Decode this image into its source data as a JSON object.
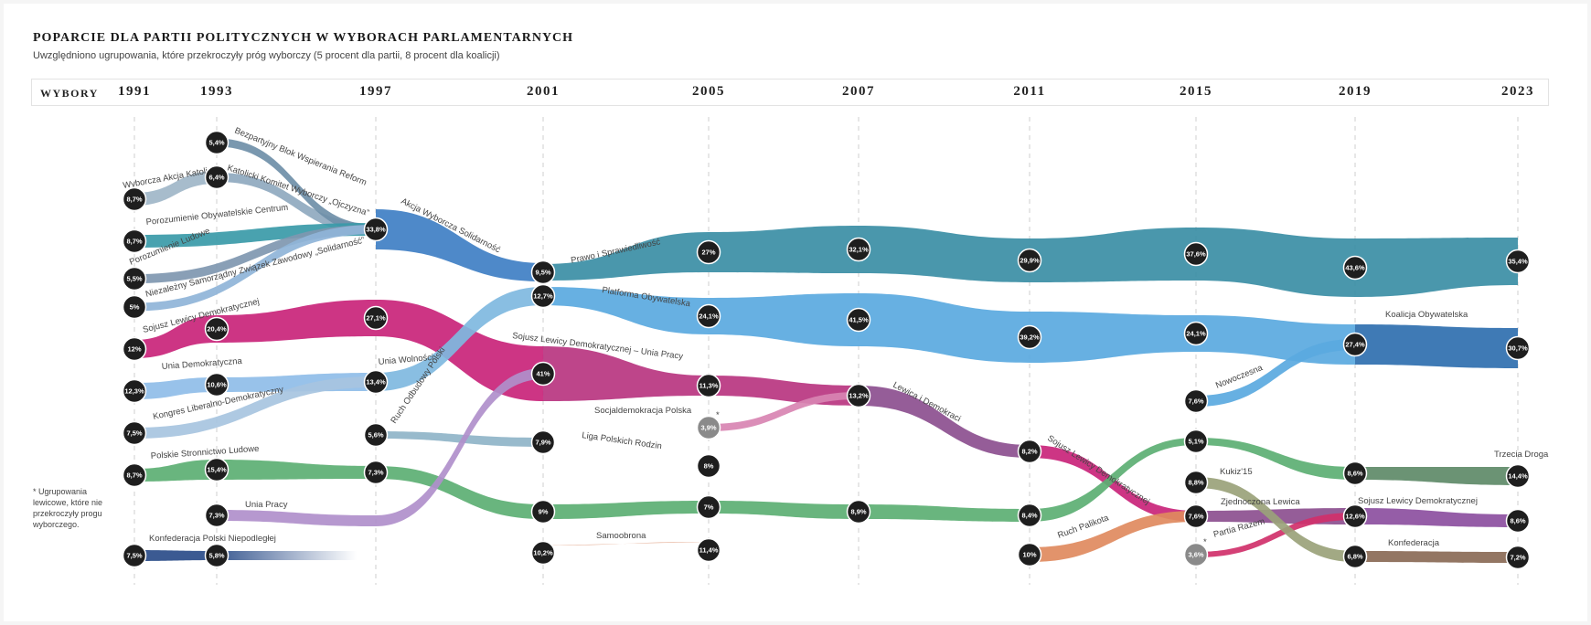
{
  "title": "POPARCIE DLA PARTII POLITYCZNYCH W WYBORACH PARLAMENTARNYCH",
  "subtitle": "Uwzględniono ugrupowania, które przekroczyły próg wyborczy (5 procent dla partii, 8 procent dla koalicji)",
  "header_label": "WYBORY",
  "footnote": "* Ugrupowania lewicowe, które nie przekroczyły progu wyborczego.",
  "colors": {
    "pis": "#3b8ea5",
    "po": "#5aa9e0",
    "ko": "#2f6faf",
    "sld": "#c9247a",
    "psl": "#5caf73",
    "lewica": "#8c4f8f",
    "up": "#b08fcb",
    "awsLight": "#3f7fc4",
    "samoobrona": "#e0a082",
    "lpr": "#3a78c0",
    "kpn": "#2a4c88",
    "konf": "#8a6a56",
    "kukiz": "#9aa27a",
    "td": "#5e8a68",
    "node": "#1e1e1e",
    "nodeGray": "#8a8a8a"
  },
  "chart_data": {
    "type": "alluvial",
    "title": "POPARCIE DLA PARTII POLITYCZNYCH W WYBORACH PARLAMENTARNYCH",
    "years": [
      "1991",
      "1993",
      "1997",
      "2001",
      "2005",
      "2007",
      "2011",
      "2015",
      "2019",
      "2023"
    ],
    "flows": [
      {
        "name": "Wyborcza Akcja Katolicka",
        "color": "#9fb6c8",
        "points": [
          [
            "1991",
            8.7
          ],
          [
            "1993",
            6.4
          ]
        ]
      },
      {
        "name": "Katolicki Komitet Wyborczy „Ojczyzna”",
        "color": "#8fa9bf",
        "points": [
          [
            "1993",
            6.4
          ],
          [
            "1997",
            33.8
          ]
        ]
      },
      {
        "name": "Bezpartyjny Blok Wspierania Reform",
        "color": "#6f8fa8",
        "points": [
          [
            "1993",
            5.4
          ],
          [
            "1997",
            33.8
          ]
        ]
      },
      {
        "name": "Porozumienie Obywatelskie Centrum",
        "color": "#3a9aa8",
        "points": [
          [
            "1991",
            8.7
          ],
          [
            "1997",
            33.8
          ]
        ]
      },
      {
        "name": "Porozumienie Ludowe",
        "color": "#7f97b0",
        "points": [
          [
            "1991",
            5.5
          ],
          [
            "1997",
            33.8
          ]
        ]
      },
      {
        "name": "Niezależny Samorządny Związek Zawodowy „Solidarność”",
        "color": "#8fb4d8",
        "points": [
          [
            "1991",
            5
          ],
          [
            "1997",
            33.8
          ]
        ]
      },
      {
        "name": "Akcja Wyborcza Solidarność",
        "color": "#3f7fc4",
        "points": [
          [
            "1997",
            33.8
          ],
          [
            "2001",
            9.5
          ]
        ]
      },
      {
        "name": "Prawo i Sprawiedliwość",
        "color": "#3b8ea5",
        "points": [
          [
            "2001",
            9.5
          ],
          [
            "2005",
            27
          ],
          [
            "2007",
            32.1
          ],
          [
            "2011",
            29.9
          ],
          [
            "2015",
            37.6
          ],
          [
            "2019",
            43.6
          ],
          [
            "2023",
            35.4
          ]
        ]
      },
      {
        "name": "Platforma Obywatelska",
        "color": "#5aa9e0",
        "points": [
          [
            "2001",
            12.7
          ],
          [
            "2005",
            24.1
          ],
          [
            "2007",
            41.5
          ],
          [
            "2011",
            39.2
          ],
          [
            "2015",
            24.1
          ],
          [
            "2019",
            27.4
          ]
        ]
      },
      {
        "name": "Nowoczesna",
        "color": "#5aa9e0",
        "points": [
          [
            "2015",
            7.6
          ],
          [
            "2019",
            27.4
          ]
        ]
      },
      {
        "name": "Koalicja Obywatelska",
        "color": "#2f6faf",
        "points": [
          [
            "2019",
            27.4
          ],
          [
            "2023",
            30.7
          ]
        ]
      },
      {
        "name": "Sojusz Lewicy Demokratycznej",
        "color": "#c9247a",
        "points": [
          [
            "1991",
            12
          ],
          [
            "1993",
            20.4
          ],
          [
            "1997",
            27.1
          ],
          [
            "2001",
            41
          ]
        ]
      },
      {
        "name": "Sojusz Lewicy Demokratycznej – Unia Pracy",
        "color": "#b83580",
        "points": [
          [
            "2001",
            41
          ],
          [
            "2005",
            11.3
          ],
          [
            "2007",
            13.2
          ]
        ]
      },
      {
        "name": "Socjaldemokracja Polska",
        "color": "#d884b2",
        "points": [
          [
            "2005",
            3.9
          ],
          [
            "2007",
            13.2
          ]
        ]
      },
      {
        "name": "Lewica i Demokraci",
        "color": "#8c4f8f",
        "points": [
          [
            "2007",
            13.2
          ],
          [
            "2011",
            8.2
          ]
        ]
      },
      {
        "name": "Sojusz Lewicy Demokratycznej",
        "color": "#c9247a",
        "points": [
          [
            "2011",
            8.2
          ],
          [
            "2015",
            7.6
          ]
        ]
      },
      {
        "name": "Zjednoczona Lewica",
        "color": "#8c4f8f",
        "points": [
          [
            "2015",
            7.6
          ],
          [
            "2019",
            12.6
          ]
        ]
      },
      {
        "name": "Sojusz Lewicy Demokratycznej",
        "color": "#8c4fa0",
        "points": [
          [
            "2019",
            12.6
          ],
          [
            "2023",
            8.6
          ]
        ]
      },
      {
        "name": "Ruch Palikota",
        "color": "#e08a5e",
        "points": [
          [
            "2011",
            10
          ],
          [
            "2015",
            7.6
          ]
        ]
      },
      {
        "name": "Partia Razem",
        "color": "#d0306a",
        "points": [
          [
            "2015",
            3.6
          ],
          [
            "2019",
            12.6
          ]
        ]
      },
      {
        "name": "Unia Demokratyczna",
        "color": "#8fbde8",
        "points": [
          [
            "1991",
            12.3
          ],
          [
            "1993",
            10.6
          ],
          [
            "1997",
            13.4
          ]
        ]
      },
      {
        "name": "Kongres Liberalno-Demokratyczny",
        "color": "#a7c4e0",
        "points": [
          [
            "1991",
            7.5
          ],
          [
            "1997",
            13.4
          ]
        ]
      },
      {
        "name": "Unia Wolności",
        "color": "#7fb8e0",
        "points": [
          [
            "1997",
            13.4
          ],
          [
            "2001",
            12.7
          ]
        ]
      },
      {
        "name": "Ruch Odbudowy Polski",
        "color": "#8fb4c8",
        "points": [
          [
            "1997",
            5.6
          ],
          [
            "2001",
            7.9
          ]
        ]
      },
      {
        "name": "Liga Polskich Rodzin",
        "color": "#3a78c0",
        "points": [
          [
            "2001",
            7.9
          ],
          [
            "2005",
            8
          ]
        ]
      },
      {
        "name": "Polskie Stronnictwo Ludowe",
        "color": "#5caf73",
        "points": [
          [
            "1991",
            8.7
          ],
          [
            "1993",
            15.4
          ],
          [
            "1997",
            7.3
          ],
          [
            "2001",
            9
          ],
          [
            "2005",
            7
          ],
          [
            "2007",
            8.9
          ],
          [
            "2011",
            8.4
          ],
          [
            "2015",
            5.1
          ],
          [
            "2019",
            8.6
          ]
        ]
      },
      {
        "name": "Trzecia Droga",
        "color": "#5e8a68",
        "points": [
          [
            "2019",
            8.6
          ],
          [
            "2023",
            14.4
          ]
        ]
      },
      {
        "name": "Unia Pracy",
        "color": "#b08fcb",
        "points": [
          [
            "1993",
            7.3
          ],
          [
            "1997",
            7.3
          ],
          [
            "2001",
            41
          ]
        ]
      },
      {
        "name": "Konfederacja Polski Niepodległej",
        "color": "#2a4c88",
        "points": [
          [
            "1991",
            7.5
          ],
          [
            "1993",
            5.8
          ]
        ]
      },
      {
        "name": "Samoobrona",
        "color": "#e0a082",
        "points": [
          [
            "2001",
            10.2
          ],
          [
            "2005",
            11.4
          ]
        ]
      },
      {
        "name": "Kukiz'15",
        "color": "#9aa27a",
        "points": [
          [
            "2015",
            8.8
          ],
          [
            "2019",
            8.6
          ]
        ]
      },
      {
        "name": "Konfederacja",
        "color": "#8a6a56",
        "points": [
          [
            "2019",
            6.8
          ],
          [
            "2023",
            7.2
          ]
        ]
      }
    ],
    "nodes": [
      {
        "year": "1991",
        "value": "8,7%"
      },
      {
        "year": "1991",
        "value": "8,7%"
      },
      {
        "year": "1991",
        "value": "5,5%"
      },
      {
        "year": "1991",
        "value": "5%"
      },
      {
        "year": "1991",
        "value": "12%"
      },
      {
        "year": "1991",
        "value": "12,3%"
      },
      {
        "year": "1991",
        "value": "7,5%"
      },
      {
        "year": "1991",
        "value": "8,7%"
      },
      {
        "year": "1991",
        "value": "7,5%"
      },
      {
        "year": "1993",
        "value": "5,4%"
      },
      {
        "year": "1993",
        "value": "6,4%"
      },
      {
        "year": "1993",
        "value": "20,4%"
      },
      {
        "year": "1993",
        "value": "10,6%"
      },
      {
        "year": "1993",
        "value": "15,4%"
      },
      {
        "year": "1993",
        "value": "7,3%"
      },
      {
        "year": "1993",
        "value": "5,8%"
      },
      {
        "year": "1997",
        "value": "33,8%"
      },
      {
        "year": "1997",
        "value": "27,1%"
      },
      {
        "year": "1997",
        "value": "13,4%"
      },
      {
        "year": "1997",
        "value": "5,6%"
      },
      {
        "year": "1997",
        "value": "7,3%"
      },
      {
        "year": "2001",
        "value": "9,5%"
      },
      {
        "year": "2001",
        "value": "12,7%"
      },
      {
        "year": "2001",
        "value": "41%"
      },
      {
        "year": "2001",
        "value": "7,9%"
      },
      {
        "year": "2001",
        "value": "9%"
      },
      {
        "year": "2001",
        "value": "10,2%"
      },
      {
        "year": "2005",
        "value": "27%"
      },
      {
        "year": "2005",
        "value": "24,1%"
      },
      {
        "year": "2005",
        "value": "11,3%"
      },
      {
        "year": "2005",
        "value": "3,9%"
      },
      {
        "year": "2005",
        "value": "8%"
      },
      {
        "year": "2005",
        "value": "7%"
      },
      {
        "year": "2005",
        "value": "11,4%"
      },
      {
        "year": "2007",
        "value": "32,1%"
      },
      {
        "year": "2007",
        "value": "41,5%"
      },
      {
        "year": "2007",
        "value": "13,2%"
      },
      {
        "year": "2007",
        "value": "8,9%"
      },
      {
        "year": "2011",
        "value": "29,9%"
      },
      {
        "year": "2011",
        "value": "39,2%"
      },
      {
        "year": "2011",
        "value": "8,2%"
      },
      {
        "year": "2011",
        "value": "8,4%"
      },
      {
        "year": "2011",
        "value": "10%"
      },
      {
        "year": "2015",
        "value": "37,6%"
      },
      {
        "year": "2015",
        "value": "24,1%"
      },
      {
        "year": "2015",
        "value": "7,6%"
      },
      {
        "year": "2015",
        "value": "5,1%"
      },
      {
        "year": "2015",
        "value": "8,8%"
      },
      {
        "year": "2015",
        "value": "7,6%"
      },
      {
        "year": "2015",
        "value": "3,6%"
      },
      {
        "year": "2019",
        "value": "43,6%"
      },
      {
        "year": "2019",
        "value": "27,4%"
      },
      {
        "year": "2019",
        "value": "8,6%"
      },
      {
        "year": "2019",
        "value": "12,6%"
      },
      {
        "year": "2019",
        "value": "6,8%"
      },
      {
        "year": "2023",
        "value": "35,4%"
      },
      {
        "year": "2023",
        "value": "30,7%"
      },
      {
        "year": "2023",
        "value": "14,4%"
      },
      {
        "year": "2023",
        "value": "8,6%"
      },
      {
        "year": "2023",
        "value": "7,2%"
      }
    ],
    "grid": "dashed vertical lines per election year",
    "legend": "none"
  }
}
